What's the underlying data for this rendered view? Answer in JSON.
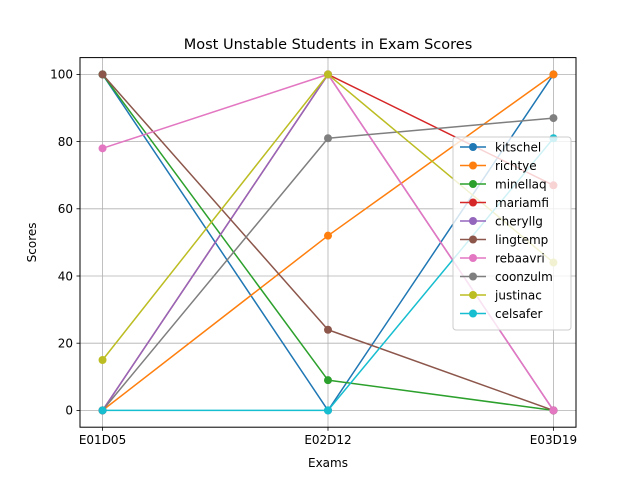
{
  "chart_data": {
    "type": "line",
    "title": "Most Unstable Students in Exam Scores",
    "xlabel": "Exams",
    "ylabel": "Scores",
    "categories": [
      "E01D05",
      "E02D12",
      "E03D19"
    ],
    "ylim": [
      -5,
      105
    ],
    "yticks": [
      0,
      20,
      40,
      60,
      80,
      100
    ],
    "grid": true,
    "legend_position": "right",
    "series": [
      {
        "name": "kitschel",
        "color": "#1f77b4",
        "values": [
          100,
          0,
          100
        ]
      },
      {
        "name": "richtye",
        "color": "#ff7f0e",
        "values": [
          0,
          52,
          100
        ]
      },
      {
        "name": "minellaq",
        "color": "#2ca02c",
        "values": [
          100,
          9,
          0
        ]
      },
      {
        "name": "mariamfi",
        "color": "#d62728",
        "values": [
          0,
          100,
          67
        ]
      },
      {
        "name": "cheryllg",
        "color": "#9467bd",
        "values": [
          0,
          100,
          0
        ]
      },
      {
        "name": "lingtemp",
        "color": "#8c564b",
        "values": [
          100,
          24,
          0
        ]
      },
      {
        "name": "rebaavri",
        "color": "#e377c2",
        "values": [
          78,
          100,
          0
        ]
      },
      {
        "name": "coonzulm",
        "color": "#7f7f7f",
        "values": [
          0,
          81,
          87
        ]
      },
      {
        "name": "justinac",
        "color": "#bcbd22",
        "values": [
          15,
          100,
          44
        ]
      },
      {
        "name": "celsafer",
        "color": "#17becf",
        "values": [
          0,
          0,
          81
        ]
      }
    ]
  }
}
